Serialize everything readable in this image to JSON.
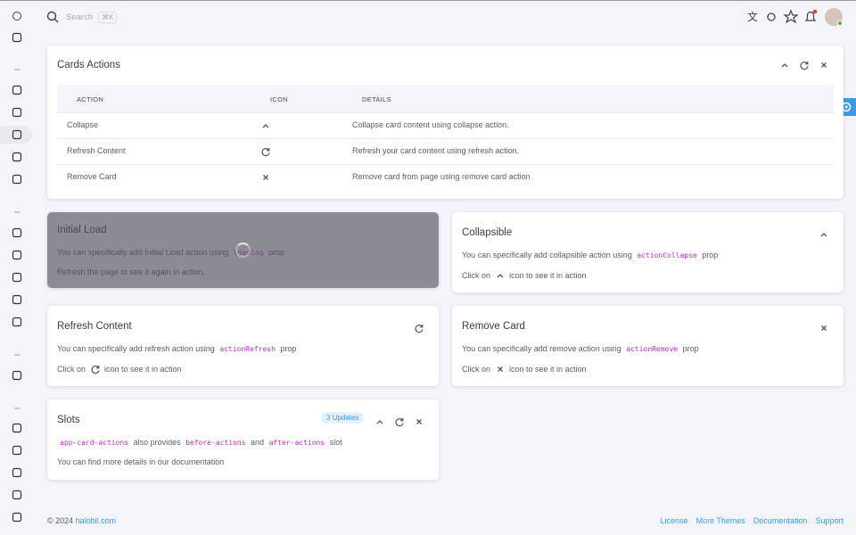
{
  "topbar": {
    "search": "Search",
    "shortcut": "⌘K"
  },
  "actions_card": {
    "title": "Cards Actions",
    "table": {
      "headers": [
        "ACTION",
        "ICON",
        "DETAILS"
      ],
      "rows": [
        [
          "Collapse",
          "Collapse card content using collapse action."
        ],
        [
          "Refresh Content",
          "Refresh your card content using refresh action."
        ],
        [
          "Remove Card",
          "Remove card from page using remove card action"
        ]
      ]
    }
  },
  "cards": [
    {
      "title": "Initial Load",
      "lines": [
        [
          "You can specifically add Initial Load action using ",
          {
            "code": "loading"
          },
          " prop"
        ],
        [
          "Refresh the page to see it again in action."
        ]
      ]
    },
    {
      "title": "Collapsible",
      "lines": [
        [
          "You can specifically add collapsible action using ",
          {
            "code": "actionCollapse"
          },
          " prop"
        ],
        [
          "Click on ",
          {
            "icon": "up"
          },
          " icon to see it in action"
        ]
      ]
    },
    {
      "title": "Refresh Content",
      "lines": [
        [
          "You can specifically add refresh action using ",
          {
            "code": "actionRefresh"
          },
          " prop"
        ],
        [
          "Click on ",
          {
            "icon": "refresh"
          },
          " icon to see it in action"
        ]
      ]
    },
    {
      "title": "Remove Card",
      "lines": [
        [
          "You can specifically add remove action using ",
          {
            "code": "actionRemove"
          },
          " prop"
        ],
        [
          "Click on ",
          {
            "icon": "x"
          },
          " icon to see it in action"
        ]
      ]
    },
    {
      "title": "Slots",
      "badge": "3 Updates",
      "lines": [
        [
          {
            "code": "app-card-actions"
          },
          " also provides ",
          {
            "code": "before-actions"
          },
          " and ",
          {
            "code": "after-actions"
          },
          " slot"
        ],
        [
          "You can find more details in our documentation"
        ]
      ]
    }
  ],
  "footer": {
    "copyright": "© 2024 ",
    "site": "halobil.com",
    "links": [
      "License",
      "More Themes",
      "Documentation",
      "Support"
    ]
  }
}
